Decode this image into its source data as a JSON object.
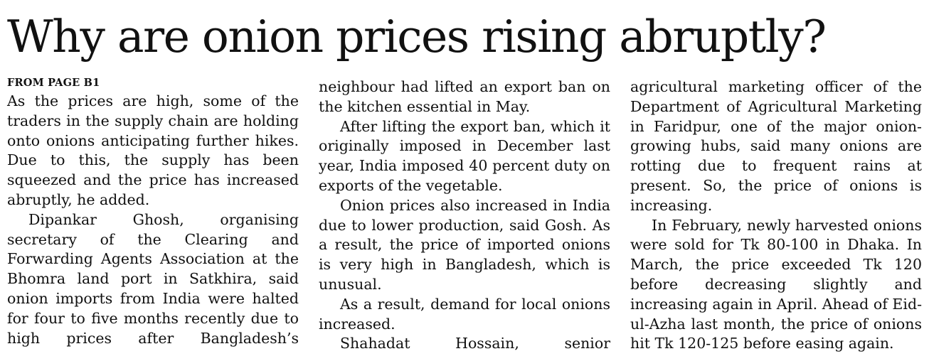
{
  "headline": "Why are onion prices rising abruptly?",
  "kicker": "FROM PAGE B1",
  "columns": [
    {
      "paragraphs": [
        "As the prices are high, some of the traders in the supply chain are holding onto onions anticipating further hikes. Due to this, the supply has been squeezed and the price has increased abruptly, he added.",
        "Dipankar Ghosh, organising secretary of the Clearing and Forwarding Agents Association at the Bhomra land port in Satkhira, said onion imports from India were halted for four to five months recently due to high prices after Bangladesh’s"
      ]
    },
    {
      "paragraphs": [
        "neighbour had lifted an export ban on the kitchen essential in May.",
        "After lifting the export ban, which it originally imposed in December last year, India imposed 40 percent duty on exports of the vegetable.",
        "Onion prices also increased in India due to lower production, said Gosh. As a result, the price of imported onions is very high in Bangladesh, which is unusual.",
        "As a result, demand for local onions increased.",
        "Shahadat Hossain, senior"
      ]
    },
    {
      "paragraphs": [
        "agricultural marketing officer of the Department of Agricultural Marketing in Faridpur, one of the major onion-growing hubs, said many onions are rotting due to frequent rains at present. So, the price of onions is increasing.",
        "In February, newly harvested onions were sold for Tk 80-100 in Dhaka. In March, the price exceeded Tk 120 before decreasing slightly and increasing again in April. Ahead of Eid-ul-Azha last month, the price of onions hit Tk 120-125 before easing again."
      ]
    }
  ]
}
